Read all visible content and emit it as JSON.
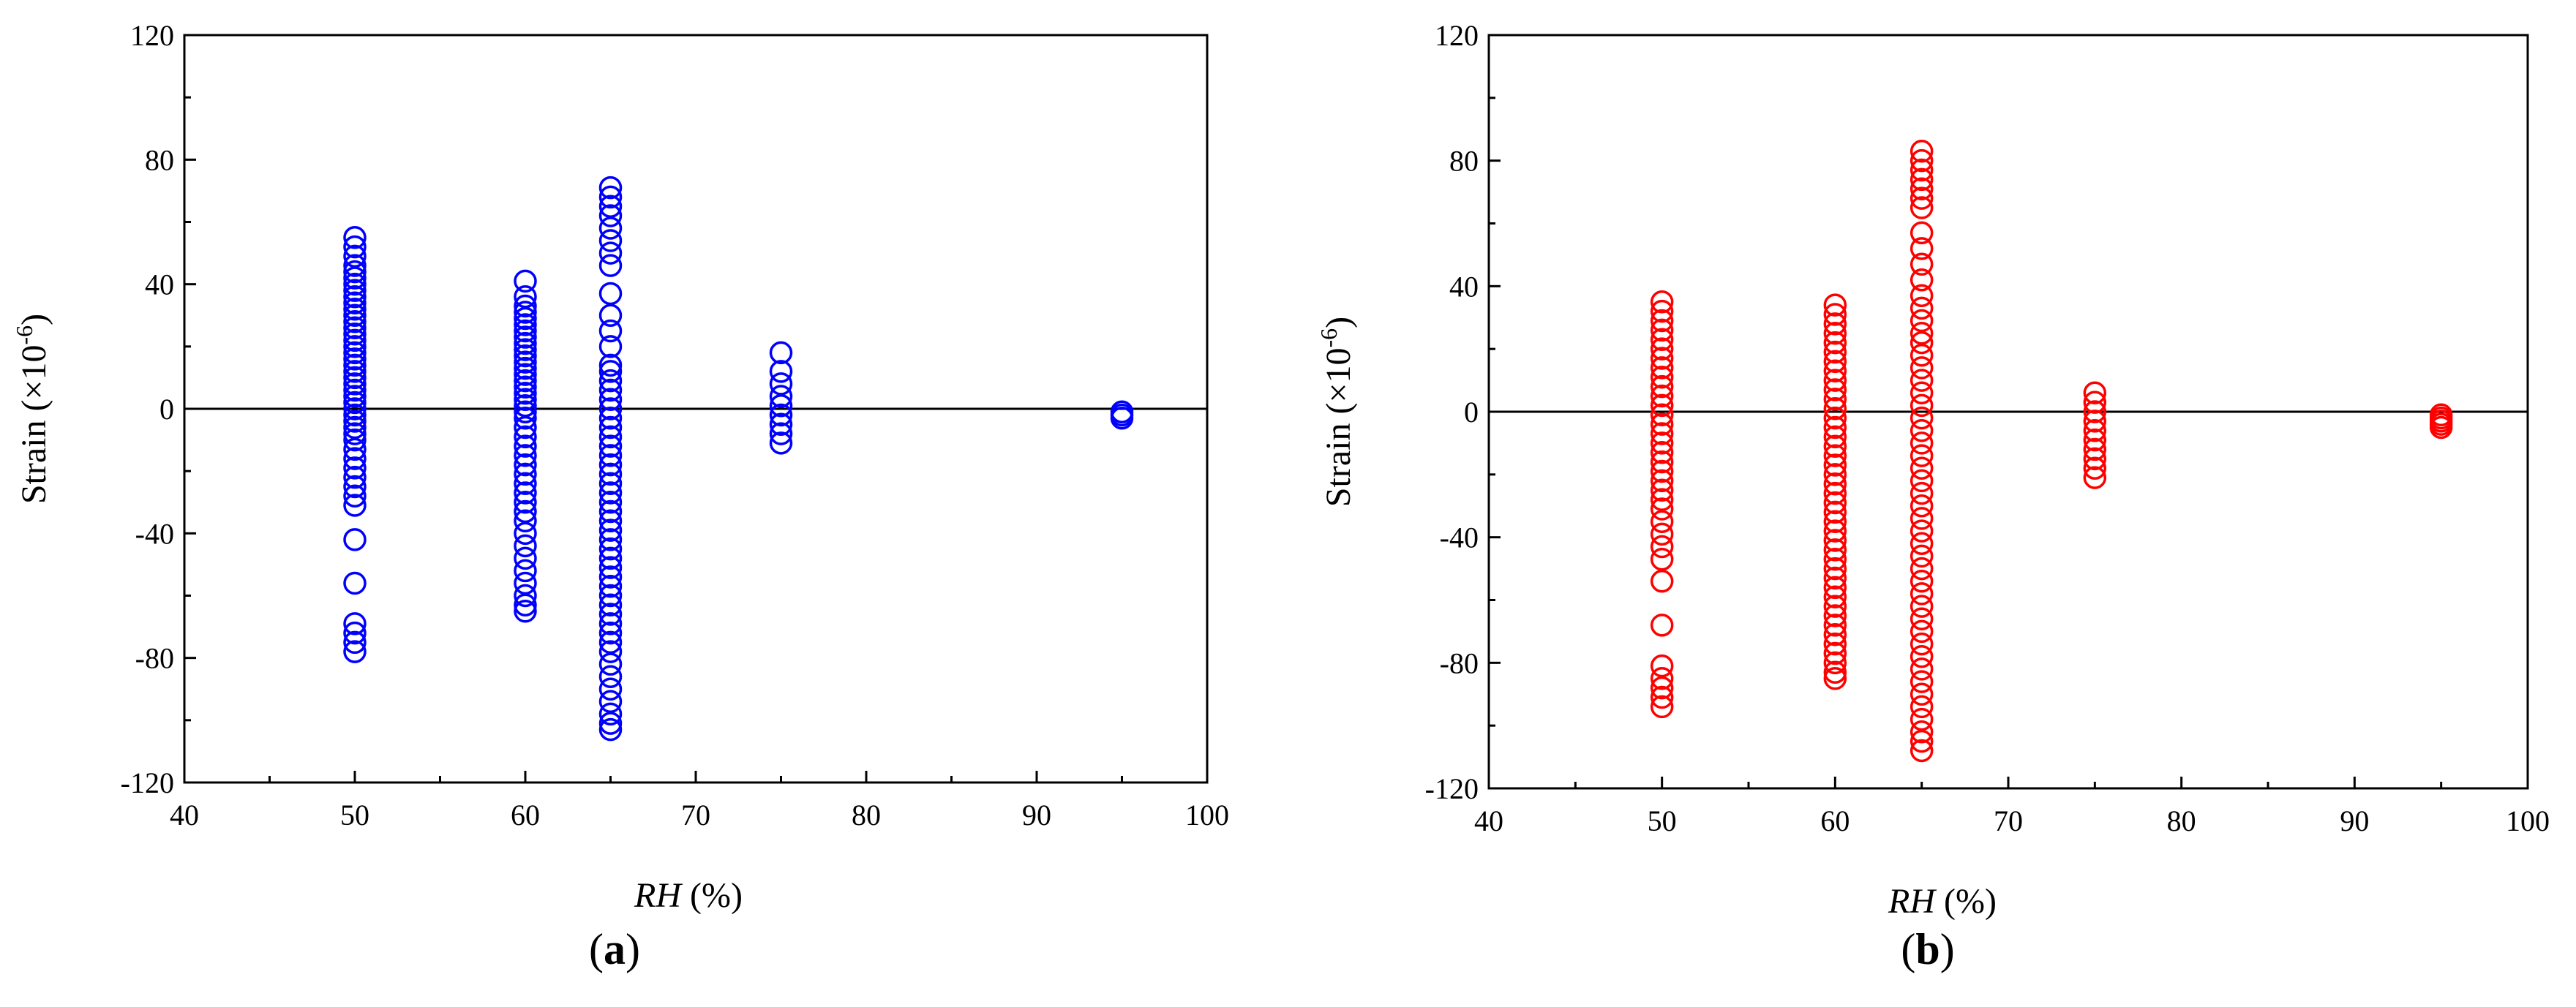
{
  "figure": {
    "panels": [
      "a",
      "b"
    ]
  },
  "chart_data": [
    {
      "type": "scatter",
      "panel_label": "a",
      "xlabel_italic": "RH",
      "xlabel_rest": " (%)",
      "ylabel_main": "Strain (×10",
      "ylabel_exp": "-6",
      "ylabel_close": ")",
      "xlim": [
        40,
        100
      ],
      "ylim": [
        -120,
        120
      ],
      "xticks": [
        40,
        50,
        60,
        70,
        80,
        90,
        100
      ],
      "yticks": [
        -120,
        -80,
        -40,
        0,
        40,
        80,
        120
      ],
      "zero_line": true,
      "marker": "open-circle",
      "color": "#0000ff",
      "series": [
        {
          "x": 50,
          "y": [
            55,
            52,
            49,
            46,
            44,
            42,
            40,
            38,
            36,
            34,
            32,
            30,
            28,
            26,
            24,
            22,
            20,
            18,
            16,
            14,
            12,
            10,
            8,
            6,
            4,
            2,
            0,
            -2,
            -4,
            -6,
            -8,
            -10,
            -13,
            -16,
            -19,
            -22,
            -25,
            -28,
            -31,
            -42,
            -56,
            -69,
            -72,
            -75,
            -78
          ]
        },
        {
          "x": 60,
          "y": [
            41,
            36,
            33,
            31,
            29,
            27,
            25,
            23,
            21,
            19,
            17,
            15,
            13,
            11,
            9,
            7,
            5,
            3,
            1,
            -1,
            -3,
            -6,
            -9,
            -12,
            -15,
            -18,
            -21,
            -24,
            -27,
            -30,
            -33,
            -36,
            -40,
            -44,
            -48,
            -52,
            -56,
            -60,
            -63,
            -65
          ]
        },
        {
          "x": 65,
          "y": [
            71,
            68,
            65,
            62,
            58,
            54,
            50,
            46,
            37,
            30,
            25,
            20,
            14,
            12,
            9,
            6,
            3,
            0,
            -3,
            -6,
            -9,
            -12,
            -15,
            -18,
            -21,
            -24,
            -27,
            -30,
            -33,
            -36,
            -39,
            -42,
            -45,
            -48,
            -51,
            -54,
            -57,
            -60,
            -63,
            -66,
            -69,
            -72,
            -75,
            -78,
            -82,
            -86,
            -90,
            -94,
            -98,
            -101,
            -103
          ]
        },
        {
          "x": 75,
          "y": [
            18,
            12,
            8,
            4,
            1,
            -2,
            -5,
            -8,
            -11
          ]
        },
        {
          "x": 95,
          "y": [
            -1,
            -2,
            -3
          ]
        }
      ]
    },
    {
      "type": "scatter",
      "panel_label": "b",
      "xlabel_italic": "RH",
      "xlabel_rest": " (%)",
      "ylabel_main": "Strain (×10",
      "ylabel_exp": "-6",
      "ylabel_close": ")",
      "xlim": [
        40,
        100
      ],
      "ylim": [
        -120,
        120
      ],
      "xticks": [
        40,
        50,
        60,
        70,
        80,
        90,
        100
      ],
      "yticks": [
        -120,
        -80,
        -40,
        0,
        40,
        80,
        120
      ],
      "zero_line": true,
      "marker": "open-circle",
      "color": "#ff0000",
      "series": [
        {
          "x": 50,
          "y": [
            35,
            32,
            29,
            26,
            23,
            20,
            17,
            14,
            11,
            8,
            5,
            2,
            -1,
            -4,
            -7,
            -10,
            -13,
            -16,
            -19,
            -22,
            -25,
            -28,
            -31,
            -35,
            -39,
            -43,
            -47,
            -54,
            -68,
            -81,
            -85,
            -88,
            -91,
            -94
          ]
        },
        {
          "x": 60,
          "y": [
            34,
            31,
            28,
            25,
            22,
            19,
            16,
            13,
            10,
            7,
            4,
            1,
            -2,
            -5,
            -8,
            -11,
            -14,
            -17,
            -20,
            -23,
            -26,
            -29,
            -32,
            -35,
            -38,
            -41,
            -44,
            -47,
            -50,
            -53,
            -56,
            -59,
            -62,
            -65,
            -68,
            -71,
            -74,
            -77,
            -80,
            -83,
            -85
          ]
        },
        {
          "x": 65,
          "y": [
            83,
            80,
            77,
            74,
            71,
            68,
            65,
            57,
            52,
            47,
            42,
            37,
            33,
            29,
            25,
            22,
            18,
            14,
            10,
            6,
            2,
            -2,
            -6,
            -10,
            -14,
            -18,
            -22,
            -26,
            -30,
            -34,
            -38,
            -42,
            -46,
            -50,
            -54,
            -58,
            -62,
            -66,
            -70,
            -74,
            -78,
            -82,
            -86,
            -90,
            -94,
            -98,
            -102,
            -105,
            -108
          ]
        },
        {
          "x": 75,
          "y": [
            6,
            3,
            0,
            -3,
            -6,
            -9,
            -12,
            -15,
            -18,
            -21
          ]
        },
        {
          "x": 95,
          "y": [
            -1,
            -2,
            -3,
            -4,
            -5
          ]
        }
      ]
    }
  ]
}
